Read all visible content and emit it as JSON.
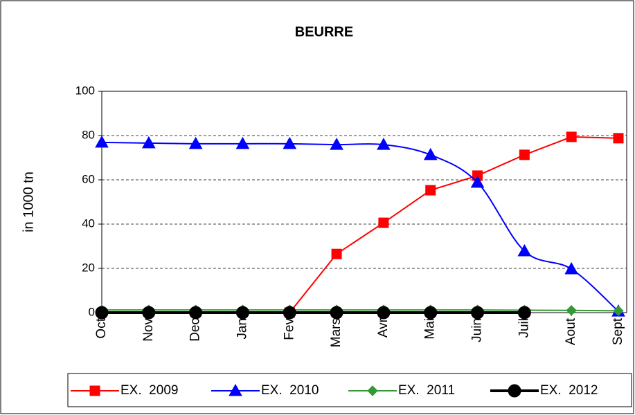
{
  "chart_data": {
    "type": "line",
    "title": "BEURRE",
    "y_label": "in 1000 tn",
    "categories": [
      "Oct",
      "Nov",
      "Dec",
      "Jan",
      "Fev",
      "Mars",
      "Avr",
      "Mai",
      "Juin",
      "Juil",
      "Aout",
      "Sept"
    ],
    "series": [
      {
        "name": "EX.  2009",
        "color": "#ff0000",
        "marker": "square",
        "smooth": false,
        "values": [
          null,
          null,
          null,
          null,
          0,
          26.5,
          40.6,
          55.3,
          61.9,
          71.3,
          79.4,
          78.8
        ]
      },
      {
        "name": "EX.  2010",
        "color": "#0000ff",
        "marker": "triangle",
        "smooth": true,
        "values": [
          76.9,
          76.6,
          76.3,
          76.3,
          76.3,
          75.9,
          75.9,
          71.3,
          58.8,
          27.8,
          19.7,
          0.6
        ]
      },
      {
        "name": "EX.  2011",
        "color": "#339933",
        "marker": "diamond",
        "smooth": false,
        "values": [
          1.2,
          1.2,
          1.2,
          1.2,
          1.2,
          1.2,
          1.2,
          1.2,
          1.2,
          1.1,
          1.0,
          0.8
        ]
      },
      {
        "name": "EX.  2012",
        "color": "#000000",
        "marker": "circle",
        "smooth": false,
        "values": [
          0,
          0,
          0,
          0,
          0,
          0,
          0,
          0,
          0,
          0,
          null,
          null
        ]
      }
    ],
    "ylim": [
      0,
      100
    ],
    "yticks": [
      0,
      20,
      40,
      60,
      80,
      100
    ],
    "grid": true,
    "legend": "bottom"
  }
}
